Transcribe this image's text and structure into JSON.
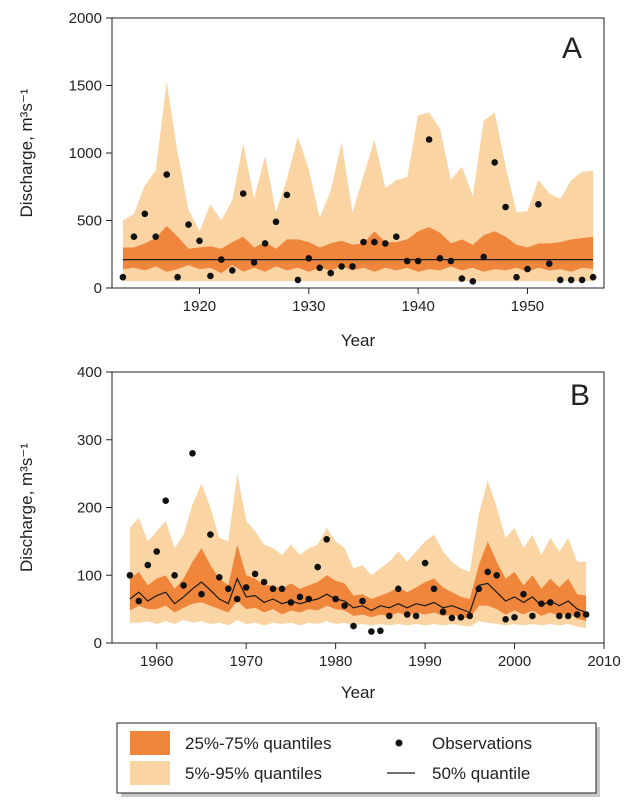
{
  "chart_data": [
    {
      "type": "line",
      "panel_label": "A",
      "ylabel": "Discharge, m³s⁻¹",
      "xlabel": "Year",
      "xlim": [
        1912,
        1957
      ],
      "ylim": [
        0,
        2000
      ],
      "xticks": [
        1920,
        1930,
        1940,
        1950
      ],
      "yticks": [
        0,
        500,
        1000,
        1500,
        2000
      ],
      "grid": false,
      "series": [
        {
          "name": "5%-95% quantiles",
          "kind": "band",
          "color": "#fbd4a4",
          "x": [
            1913,
            1914,
            1915,
            1916,
            1917,
            1918,
            1919,
            1920,
            1921,
            1922,
            1923,
            1924,
            1925,
            1926,
            1927,
            1928,
            1929,
            1930,
            1931,
            1932,
            1933,
            1934,
            1935,
            1936,
            1937,
            1938,
            1939,
            1940,
            1941,
            1942,
            1943,
            1944,
            1945,
            1946,
            1947,
            1948,
            1949,
            1950,
            1951,
            1952,
            1953,
            1954,
            1955,
            1956
          ],
          "lower": [
            50,
            50,
            50,
            50,
            50,
            50,
            50,
            50,
            50,
            50,
            50,
            50,
            50,
            50,
            50,
            50,
            50,
            50,
            50,
            50,
            50,
            50,
            50,
            50,
            50,
            50,
            50,
            50,
            50,
            50,
            50,
            50,
            50,
            50,
            50,
            50,
            50,
            50,
            50,
            50,
            50,
            50,
            50,
            50
          ],
          "upper": [
            500,
            550,
            760,
            870,
            1530,
            1000,
            580,
            420,
            620,
            500,
            650,
            1070,
            660,
            980,
            560,
            810,
            1120,
            880,
            520,
            720,
            1080,
            560,
            830,
            1100,
            740,
            800,
            820,
            1280,
            1300,
            1180,
            800,
            900,
            680,
            1240,
            1300,
            900,
            560,
            570,
            800,
            700,
            660,
            800,
            860,
            870
          ]
        },
        {
          "name": "25%-75% quantiles",
          "kind": "band",
          "color": "#f0863b",
          "x": [
            1913,
            1914,
            1915,
            1916,
            1917,
            1918,
            1919,
            1920,
            1921,
            1922,
            1923,
            1924,
            1925,
            1926,
            1927,
            1928,
            1929,
            1930,
            1931,
            1932,
            1933,
            1934,
            1935,
            1936,
            1937,
            1938,
            1939,
            1940,
            1941,
            1942,
            1943,
            1944,
            1945,
            1946,
            1947,
            1948,
            1949,
            1950,
            1951,
            1952,
            1953,
            1954,
            1955,
            1956
          ],
          "lower": [
            140,
            150,
            130,
            160,
            120,
            140,
            170,
            140,
            150,
            110,
            170,
            120,
            150,
            120,
            160,
            130,
            150,
            120,
            150,
            130,
            160,
            130,
            150,
            120,
            150,
            130,
            150,
            120,
            140,
            130,
            160,
            130,
            150,
            120,
            140,
            130,
            150,
            120,
            150,
            130,
            140,
            120,
            150,
            140
          ],
          "upper": [
            300,
            300,
            330,
            370,
            460,
            380,
            290,
            300,
            310,
            290,
            340,
            380,
            300,
            340,
            290,
            360,
            360,
            340,
            300,
            330,
            350,
            320,
            330,
            420,
            340,
            340,
            360,
            420,
            450,
            410,
            330,
            360,
            320,
            390,
            420,
            380,
            320,
            300,
            330,
            330,
            340,
            360,
            370,
            380
          ]
        },
        {
          "name": "50% quantile",
          "kind": "line",
          "color": "#1a1a1a",
          "x": [
            1913,
            1956
          ],
          "values": [
            210,
            210
          ]
        },
        {
          "name": "Observations",
          "kind": "points",
          "color": "#111111",
          "x": [
            1913,
            1914,
            1915,
            1916,
            1917,
            1918,
            1919,
            1920,
            1921,
            1922,
            1923,
            1924,
            1925,
            1926,
            1927,
            1928,
            1929,
            1930,
            1931,
            1932,
            1933,
            1934,
            1935,
            1936,
            1937,
            1938,
            1939,
            1940,
            1941,
            1942,
            1943,
            1944,
            1945,
            1946,
            1947,
            1948,
            1949,
            1950,
            1951,
            1952,
            1953,
            1954,
            1955,
            1956
          ],
          "values": [
            80,
            380,
            550,
            380,
            840,
            80,
            470,
            350,
            90,
            210,
            130,
            700,
            190,
            330,
            490,
            690,
            60,
            220,
            150,
            110,
            160,
            160,
            340,
            340,
            330,
            380,
            200,
            200,
            1100,
            220,
            200,
            70,
            50,
            230,
            930,
            600,
            80,
            140,
            620,
            180,
            60,
            60,
            60,
            80
          ]
        }
      ]
    },
    {
      "type": "line",
      "panel_label": "B",
      "ylabel": "Discharge, m³s⁻¹",
      "xlabel": "Year",
      "xlim": [
        1955,
        2010
      ],
      "ylim": [
        0,
        400
      ],
      "xticks": [
        1960,
        1970,
        1980,
        1990,
        2000,
        2010
      ],
      "yticks": [
        0,
        100,
        200,
        300,
        400
      ],
      "grid": false,
      "series": [
        {
          "name": "5%-95% quantiles",
          "kind": "band",
          "color": "#fbd4a4",
          "x": [
            1957,
            1958,
            1959,
            1960,
            1961,
            1962,
            1963,
            1964,
            1965,
            1966,
            1967,
            1968,
            1969,
            1970,
            1971,
            1972,
            1973,
            1974,
            1975,
            1976,
            1977,
            1978,
            1979,
            1980,
            1981,
            1982,
            1983,
            1984,
            1985,
            1986,
            1987,
            1988,
            1989,
            1990,
            1991,
            1992,
            1993,
            1994,
            1995,
            1996,
            1997,
            1998,
            1999,
            2000,
            2001,
            2002,
            2003,
            2004,
            2005,
            2006,
            2007,
            2008
          ],
          "lower": [
            30,
            30,
            32,
            28,
            32,
            28,
            34,
            30,
            32,
            28,
            30,
            26,
            34,
            28,
            30,
            26,
            30,
            28,
            30,
            26,
            30,
            28,
            32,
            28,
            30,
            26,
            28,
            26,
            28,
            26,
            28,
            26,
            28,
            26,
            28,
            26,
            28,
            26,
            24,
            32,
            30,
            28,
            26,
            28,
            26,
            28,
            26,
            28,
            26,
            28,
            24,
            22
          ],
          "upper": [
            170,
            185,
            150,
            165,
            180,
            140,
            160,
            205,
            235,
            200,
            155,
            150,
            250,
            180,
            165,
            145,
            140,
            130,
            145,
            130,
            140,
            145,
            170,
            150,
            140,
            110,
            115,
            100,
            110,
            120,
            135,
            120,
            135,
            150,
            160,
            135,
            120,
            110,
            105,
            190,
            240,
            200,
            155,
            170,
            140,
            160,
            130,
            155,
            135,
            155,
            120,
            120
          ]
        },
        {
          "name": "25%-75% quantiles",
          "kind": "band",
          "color": "#f0863b",
          "x": [
            1957,
            1958,
            1959,
            1960,
            1961,
            1962,
            1963,
            1964,
            1965,
            1966,
            1967,
            1968,
            1969,
            1970,
            1971,
            1972,
            1973,
            1974,
            1975,
            1976,
            1977,
            1978,
            1979,
            1980,
            1981,
            1982,
            1983,
            1984,
            1985,
            1986,
            1987,
            1988,
            1989,
            1990,
            1991,
            1992,
            1993,
            1994,
            1995,
            1996,
            1997,
            1998,
            1999,
            2000,
            2001,
            2002,
            2003,
            2004,
            2005,
            2006,
            2007,
            2008
          ],
          "lower": [
            48,
            55,
            50,
            50,
            55,
            45,
            52,
            58,
            60,
            55,
            50,
            45,
            62,
            50,
            52,
            45,
            50,
            42,
            48,
            45,
            50,
            48,
            55,
            50,
            48,
            40,
            42,
            38,
            42,
            40,
            45,
            40,
            45,
            42,
            45,
            40,
            42,
            38,
            36,
            55,
            55,
            50,
            42,
            48,
            42,
            48,
            40,
            45,
            40,
            45,
            36,
            32
          ],
          "upper": [
            95,
            105,
            85,
            95,
            100,
            80,
            95,
            120,
            140,
            115,
            95,
            85,
            145,
            100,
            95,
            85,
            85,
            80,
            88,
            80,
            85,
            90,
            100,
            92,
            88,
            70,
            72,
            65,
            70,
            75,
            82,
            75,
            82,
            90,
            95,
            82,
            75,
            68,
            65,
            115,
            150,
            120,
            95,
            105,
            85,
            100,
            80,
            95,
            82,
            95,
            72,
            70
          ]
        },
        {
          "name": "50% quantile",
          "kind": "line",
          "color": "#1a1a1a",
          "x": [
            1957,
            1958,
            1959,
            1960,
            1961,
            1962,
            1963,
            1964,
            1965,
            1966,
            1967,
            1968,
            1969,
            1970,
            1971,
            1972,
            1973,
            1974,
            1975,
            1976,
            1977,
            1978,
            1979,
            1980,
            1981,
            1982,
            1983,
            1984,
            1985,
            1986,
            1987,
            1988,
            1989,
            1990,
            1991,
            1992,
            1993,
            1994,
            1995,
            1996,
            1997,
            1998,
            1999,
            2000,
            2001,
            2002,
            2003,
            2004,
            2005,
            2006,
            2007,
            2008
          ],
          "values": [
            65,
            75,
            62,
            70,
            75,
            58,
            68,
            80,
            90,
            78,
            65,
            58,
            95,
            68,
            70,
            60,
            65,
            58,
            62,
            58,
            62,
            65,
            72,
            65,
            62,
            52,
            55,
            48,
            55,
            52,
            58,
            52,
            58,
            55,
            60,
            52,
            55,
            50,
            45,
            85,
            88,
            75,
            62,
            68,
            60,
            68,
            55,
            62,
            55,
            62,
            50,
            45
          ]
        },
        {
          "name": "Observations",
          "kind": "points",
          "color": "#111111",
          "x": [
            1957,
            1958,
            1959,
            1960,
            1961,
            1962,
            1963,
            1964,
            1965,
            1966,
            1967,
            1968,
            1969,
            1970,
            1971,
            1972,
            1973,
            1974,
            1975,
            1976,
            1977,
            1978,
            1979,
            1980,
            1981,
            1982,
            1983,
            1984,
            1985,
            1986,
            1987,
            1988,
            1989,
            1990,
            1991,
            1992,
            1993,
            1994,
            1995,
            1996,
            1997,
            1998,
            1999,
            2000,
            2001,
            2002,
            2003,
            2004,
            2005,
            2006,
            2007,
            2008
          ],
          "values": [
            100,
            62,
            115,
            135,
            210,
            100,
            85,
            280,
            72,
            160,
            97,
            80,
            65,
            82,
            102,
            90,
            80,
            80,
            60,
            68,
            65,
            112,
            153,
            65,
            55,
            25,
            62,
            17,
            18,
            40,
            80,
            42,
            40,
            118,
            80,
            46,
            37,
            38,
            40,
            80,
            105,
            100,
            35,
            38,
            72,
            40,
            58,
            60,
            40,
            40,
            42,
            42
          ]
        }
      ]
    }
  ],
  "legend": {
    "placement": "bottom-center",
    "items": [
      {
        "label": "25%-75% quantiles",
        "kind": "swatch",
        "color": "#f0863b"
      },
      {
        "label": "Observations",
        "kind": "dot",
        "color": "#111111"
      },
      {
        "label": "5%-95% quantiles",
        "kind": "swatch",
        "color": "#fbd4a4"
      },
      {
        "label": "50% quantile",
        "kind": "line",
        "color": "#1a1a1a"
      }
    ]
  }
}
